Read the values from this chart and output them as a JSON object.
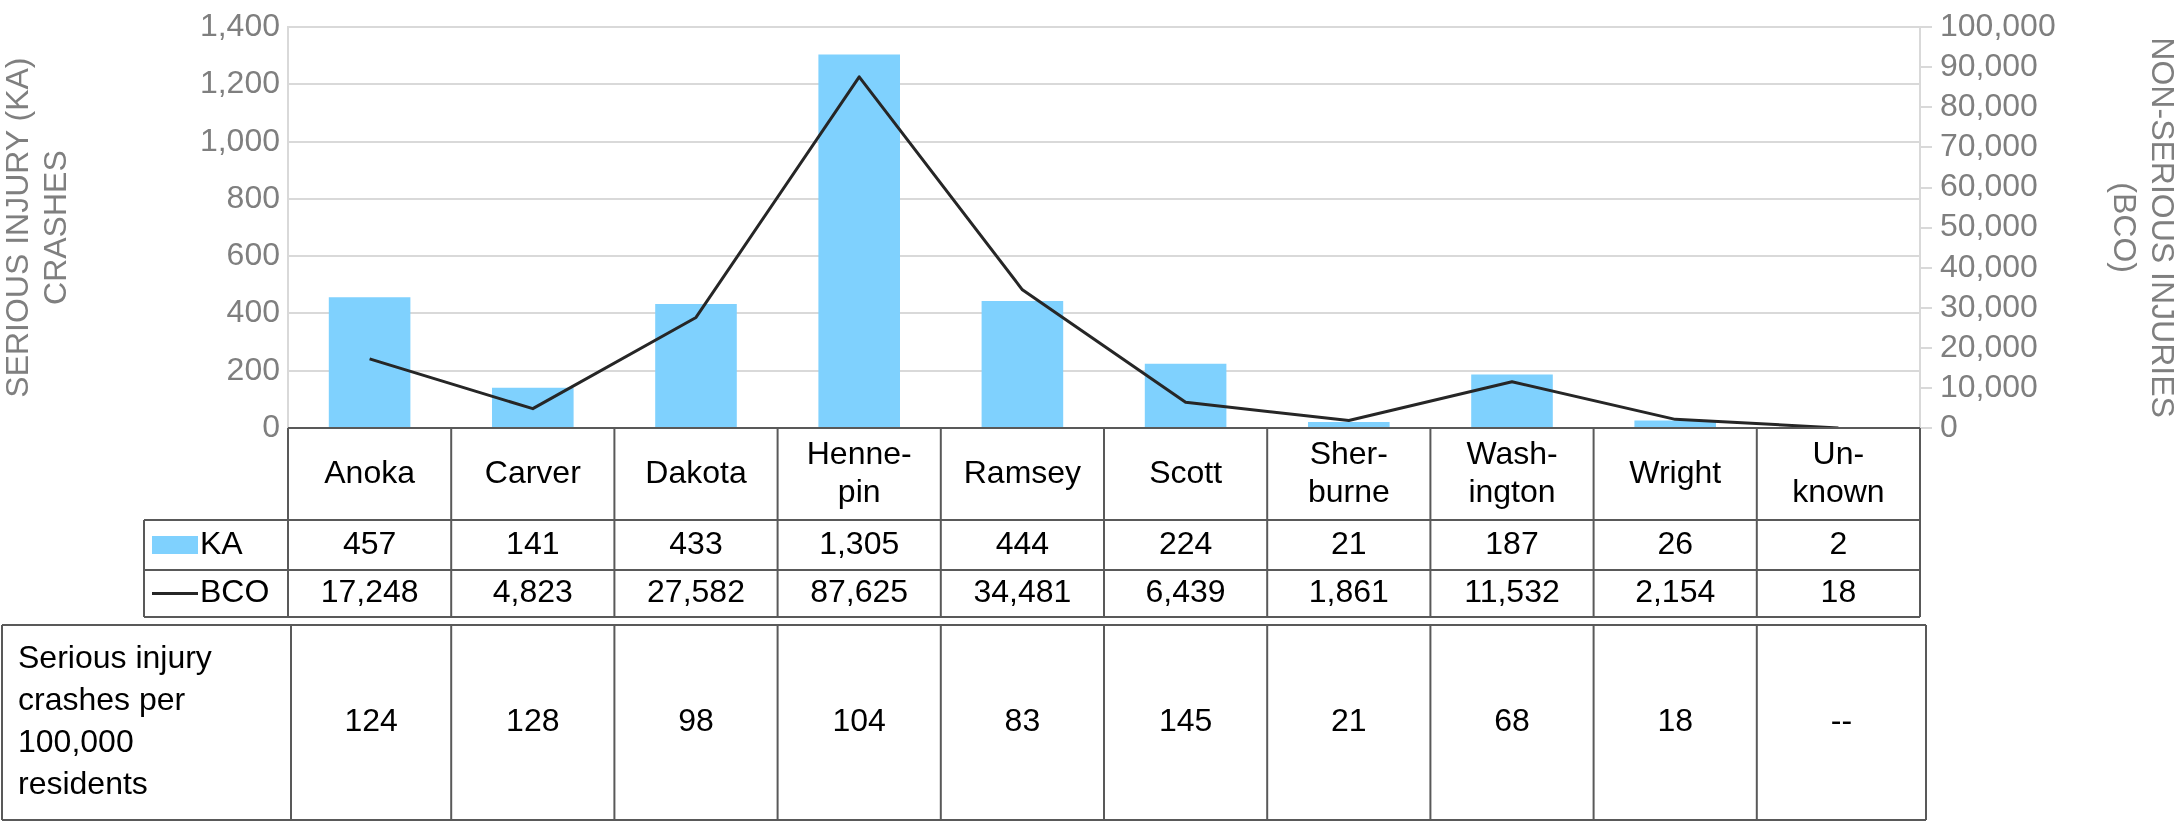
{
  "chart_data": {
    "type": "bar",
    "categories": [
      "Anoka",
      "Carver",
      "Dakota",
      "Henne-\npin",
      "Ramsey",
      "Scott",
      "Sher-\nburne",
      "Wash-\nington",
      "Wright",
      "Un-\nknown"
    ],
    "series": [
      {
        "name": "KA",
        "color": "#7fd1fe",
        "values": [
          457,
          141,
          433,
          1305,
          444,
          224,
          21,
          187,
          26,
          2
        ],
        "value_labels": [
          "457",
          "141",
          "433",
          "1,305",
          "444",
          "224",
          "21",
          "187",
          "26",
          "2"
        ]
      },
      {
        "name": "BCO",
        "type": "line",
        "axis": "y2",
        "color": "#262626",
        "values": [
          17248,
          4823,
          27582,
          87625,
          34481,
          6439,
          1861,
          11532,
          2154,
          18
        ],
        "value_labels": [
          "17,248",
          "4,823",
          "27,582",
          "87,625",
          "34,481",
          "6,439",
          "1,861",
          "11,532",
          "2,154",
          "18"
        ]
      }
    ],
    "ylabel": "SERIOUS INJURY (KA)\nCRASHES",
    "y2label": "NON-SERIOUS INJURIES\n(BCO)",
    "ylim": [
      0,
      1400
    ],
    "yticks": [
      0,
      200,
      400,
      600,
      800,
      {
        "value": 1000,
        "label": "1,000"
      },
      {
        "value": 1200,
        "label": "1,200"
      },
      {
        "value": 1400,
        "label": "1,400"
      }
    ],
    "y2lim": [
      0,
      100000
    ],
    "y2ticks": [
      0,
      {
        "value": 10000,
        "label": "10,000"
      },
      {
        "value": 20000,
        "label": "20,000"
      },
      {
        "value": 30000,
        "label": "30,000"
      },
      {
        "value": 40000,
        "label": "40,000"
      },
      {
        "value": 50000,
        "label": "50,000"
      },
      {
        "value": 60000,
        "label": "60,000"
      },
      {
        "value": 70000,
        "label": "70,000"
      },
      {
        "value": 80000,
        "label": "80,000"
      },
      {
        "value": 90000,
        "label": "90,000"
      },
      {
        "value": 100000,
        "label": "100,000"
      }
    ],
    "grid": "y",
    "legend": "bottom left",
    "marker": "none",
    "line_style": "solid",
    "annotations": [
      "Serious injury crashes per 100,000 residents",
      "124",
      "128",
      "98",
      "104",
      "83",
      "145",
      "21",
      "68",
      "18",
      "--"
    ]
  }
}
